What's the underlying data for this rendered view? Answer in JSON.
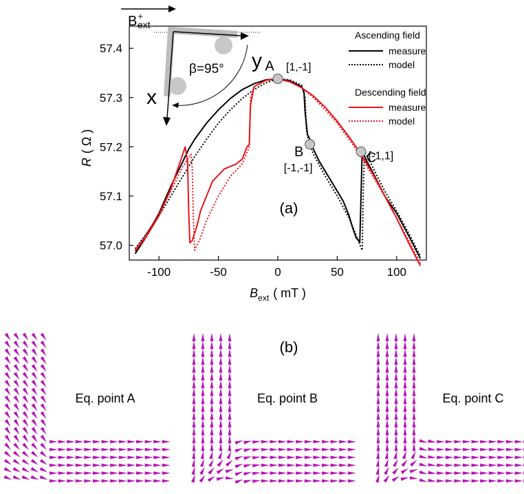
{
  "chart_data": {
    "type": "line",
    "panel_label": "(a)",
    "xlabel": "B",
    "xlabel_sub": "ext",
    "xlabel_unit": "( mT )",
    "ylabel": "R",
    "ylabel_unit": "( Ω )",
    "xlim": [
      -125,
      125
    ],
    "ylim": [
      56.97,
      57.445
    ],
    "xticks": [
      -100,
      -50,
      0,
      50,
      100
    ],
    "xtick_labels": [
      "-100",
      "-50",
      "0",
      "50",
      "100"
    ],
    "yticks": [
      57.0,
      57.1,
      57.2,
      57.3,
      57.4
    ],
    "ytick_labels": [
      "57.0",
      "57.1",
      "57.2",
      "57.3",
      "57.4"
    ],
    "grid": false,
    "legend": {
      "placement": "top-right",
      "groups": [
        {
          "title": "Ascending field",
          "entries": [
            {
              "label": "measure",
              "series": "asc_measure"
            },
            {
              "label": "model",
              "series": "asc_model"
            }
          ]
        },
        {
          "title": "Descending field",
          "entries": [
            {
              "label": "measure",
              "series": "desc_measure"
            },
            {
              "label": "model",
              "series": "desc_model"
            }
          ]
        }
      ]
    },
    "series": [
      {
        "key": "asc_measure",
        "color": "#000000",
        "dash": "solid",
        "points": [
          [
            -120,
            56.983
          ],
          [
            -110,
            57.02
          ],
          [
            -100,
            57.065
          ],
          [
            -90,
            57.12
          ],
          [
            -80,
            57.17
          ],
          [
            -75,
            57.195
          ],
          [
            -70,
            57.215
          ],
          [
            -60,
            57.248
          ],
          [
            -50,
            57.275
          ],
          [
            -40,
            57.298
          ],
          [
            -30,
            57.316
          ],
          [
            -20,
            57.328
          ],
          [
            -10,
            57.336
          ],
          [
            0,
            57.338
          ],
          [
            10,
            57.334
          ],
          [
            20,
            57.322
          ],
          [
            22,
            57.312
          ],
          [
            23,
            57.27
          ],
          [
            25,
            57.225
          ],
          [
            28,
            57.21
          ],
          [
            30,
            57.195
          ],
          [
            35,
            57.17
          ],
          [
            40,
            57.15
          ],
          [
            45,
            57.13
          ],
          [
            50,
            57.11
          ],
          [
            55,
            57.09
          ],
          [
            60,
            57.06
          ],
          [
            63,
            57.035
          ],
          [
            66,
            57.015
          ],
          [
            68,
            57.01
          ],
          [
            69,
            57.005
          ],
          [
            70,
            57.1
          ],
          [
            71,
            57.192
          ],
          [
            75,
            57.17
          ],
          [
            80,
            57.148
          ],
          [
            90,
            57.1
          ],
          [
            100,
            57.065
          ],
          [
            110,
            57.02
          ],
          [
            120,
            56.973
          ]
        ]
      },
      {
        "key": "asc_model",
        "color": "#000000",
        "dash": "dotted",
        "points": [
          [
            -120,
            56.993
          ],
          [
            -110,
            57.025
          ],
          [
            -100,
            57.06
          ],
          [
            -90,
            57.1
          ],
          [
            -80,
            57.14
          ],
          [
            -70,
            57.18
          ],
          [
            -60,
            57.215
          ],
          [
            -50,
            57.248
          ],
          [
            -40,
            57.275
          ],
          [
            -30,
            57.298
          ],
          [
            -20,
            57.316
          ],
          [
            -10,
            57.33
          ],
          [
            0,
            57.338
          ],
          [
            10,
            57.336
          ],
          [
            20,
            57.325
          ],
          [
            23,
            57.3
          ],
          [
            24,
            57.235
          ],
          [
            26,
            57.21
          ],
          [
            30,
            57.185
          ],
          [
            40,
            57.14
          ],
          [
            50,
            57.1
          ],
          [
            60,
            57.055
          ],
          [
            66,
            57.02
          ],
          [
            70,
            56.995
          ],
          [
            71,
            56.99
          ],
          [
            72,
            57.12
          ],
          [
            73,
            57.19
          ],
          [
            80,
            57.158
          ],
          [
            90,
            57.11
          ],
          [
            100,
            57.07
          ],
          [
            110,
            57.025
          ],
          [
            120,
            56.978
          ]
        ]
      },
      {
        "key": "desc_measure",
        "color": "#e8141b",
        "dash": "solid",
        "points": [
          [
            120,
            56.958
          ],
          [
            110,
            57.005
          ],
          [
            100,
            57.055
          ],
          [
            90,
            57.1
          ],
          [
            80,
            57.145
          ],
          [
            70,
            57.185
          ],
          [
            60,
            57.22
          ],
          [
            50,
            57.252
          ],
          [
            40,
            57.28
          ],
          [
            30,
            57.303
          ],
          [
            20,
            57.32
          ],
          [
            10,
            57.332
          ],
          [
            0,
            57.338
          ],
          [
            -10,
            57.335
          ],
          [
            -20,
            57.322
          ],
          [
            -23,
            57.285
          ],
          [
            -24,
            57.205
          ],
          [
            -26,
            57.2
          ],
          [
            -30,
            57.175
          ],
          [
            -35,
            57.165
          ],
          [
            -45,
            57.155
          ],
          [
            -55,
            57.13
          ],
          [
            -65,
            57.07
          ],
          [
            -68,
            57.04
          ],
          [
            -72,
            57.01
          ],
          [
            -74,
            57.005
          ],
          [
            -75,
            57.07
          ],
          [
            -76,
            57.17
          ],
          [
            -78,
            57.2
          ],
          [
            -80,
            57.185
          ],
          [
            -85,
            57.15
          ],
          [
            -90,
            57.115
          ],
          [
            -100,
            57.06
          ],
          [
            -110,
            57.02
          ],
          [
            -120,
            56.988
          ]
        ]
      },
      {
        "key": "desc_model",
        "color": "#e8141b",
        "dash": "dotted",
        "points": [
          [
            120,
            56.963
          ],
          [
            110,
            57.01
          ],
          [
            100,
            57.055
          ],
          [
            90,
            57.1
          ],
          [
            80,
            57.14
          ],
          [
            70,
            57.18
          ],
          [
            60,
            57.215
          ],
          [
            50,
            57.248
          ],
          [
            40,
            57.275
          ],
          [
            30,
            57.3
          ],
          [
            20,
            57.32
          ],
          [
            10,
            57.333
          ],
          [
            0,
            57.338
          ],
          [
            -10,
            57.335
          ],
          [
            -20,
            57.322
          ],
          [
            -23,
            57.3
          ],
          [
            -24,
            57.2
          ],
          [
            -30,
            57.165
          ],
          [
            -40,
            57.14
          ],
          [
            -50,
            57.1
          ],
          [
            -60,
            57.05
          ],
          [
            -66,
            57.01
          ],
          [
            -70,
            56.99
          ],
          [
            -71,
            57.05
          ],
          [
            -72,
            57.155
          ],
          [
            -73,
            57.185
          ],
          [
            -80,
            57.16
          ],
          [
            -90,
            57.11
          ],
          [
            -100,
            57.065
          ],
          [
            -110,
            57.025
          ],
          [
            -120,
            56.99
          ]
        ]
      }
    ],
    "points_of_interest": [
      {
        "label": "A",
        "state": "[1,-1]",
        "x": 0,
        "y": 57.338
      },
      {
        "label": "B",
        "state": "[-1,-1]",
        "x": 27,
        "y": 57.205
      },
      {
        "label": "C",
        "state": "[-1,1]",
        "x": 70,
        "y": 57.19
      }
    ]
  },
  "inset": {
    "field_label": "B",
    "field_sup": "+",
    "field_sub": "ext",
    "angle_label": "β=95°",
    "axis_x": "x",
    "axis_y": "y"
  },
  "panel_b": {
    "label": "(b)",
    "panels": [
      {
        "title": "Eq. point A",
        "variant": "A"
      },
      {
        "title": "Eq. point B",
        "variant": "B"
      },
      {
        "title": "Eq. point C",
        "variant": "C"
      }
    ],
    "arrow_color": "#b515b5"
  }
}
